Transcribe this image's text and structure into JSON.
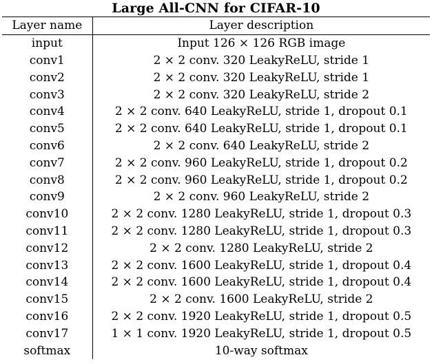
{
  "table": {
    "title": "Large All-CNN for CIFAR-10",
    "headers": [
      "Layer name",
      "Layer description"
    ],
    "rows": [
      {
        "name": "input",
        "description": "Input 126 × 126 RGB image"
      },
      {
        "name": "conv1",
        "description": "2 × 2 conv. 320 LeakyReLU, stride 1"
      },
      {
        "name": "conv2",
        "description": "2 × 2 conv. 320 LeakyReLU, stride 1"
      },
      {
        "name": "conv3",
        "description": "2 × 2 conv. 320 LeakyReLU, stride 2"
      },
      {
        "name": "conv4",
        "description": "2 × 2 conv. 640 LeakyReLU, stride 1, dropout 0.1"
      },
      {
        "name": "conv5",
        "description": "2 × 2 conv. 640 LeakyReLU, stride 1, dropout 0.1"
      },
      {
        "name": "conv6",
        "description": "2 × 2 conv. 640 LeakyReLU, stride 2"
      },
      {
        "name": "conv7",
        "description": "2 × 2 conv. 960 LeakyReLU, stride 1, dropout 0.2"
      },
      {
        "name": "conv8",
        "description": "2 × 2 conv. 960 LeakyReLU, stride 1, dropout 0.2"
      },
      {
        "name": "conv9",
        "description": "2 × 2 conv. 960 LeakyReLU, stride 2"
      },
      {
        "name": "conv10",
        "description": "2 × 2 conv. 1280 LeakyReLU, stride 1, dropout 0.3"
      },
      {
        "name": "conv11",
        "description": "2 × 2 conv. 1280 LeakyReLU, stride 1, dropout 0.3"
      },
      {
        "name": "conv12",
        "description": "2 × 2 conv. 1280 LeakyReLU, stride 2"
      },
      {
        "name": "conv13",
        "description": "2 × 2 conv. 1600 LeakyReLU, stride 1, dropout 0.4"
      },
      {
        "name": "conv14",
        "description": "2 × 2 conv. 1600 LeakyReLU, stride 1, dropout 0.4"
      },
      {
        "name": "conv15",
        "description": "2 × 2 conv. 1600 LeakyReLU, stride 2"
      },
      {
        "name": "conv16",
        "description": "2 × 2 conv. 1920 LeakyReLU, stride 1, dropout 0.5"
      },
      {
        "name": "conv17",
        "description": "1 × 1 conv. 1920 LeakyReLU, stride 1, dropout 0.5"
      },
      {
        "name": "softmax",
        "description": "10-way softmax"
      }
    ]
  }
}
